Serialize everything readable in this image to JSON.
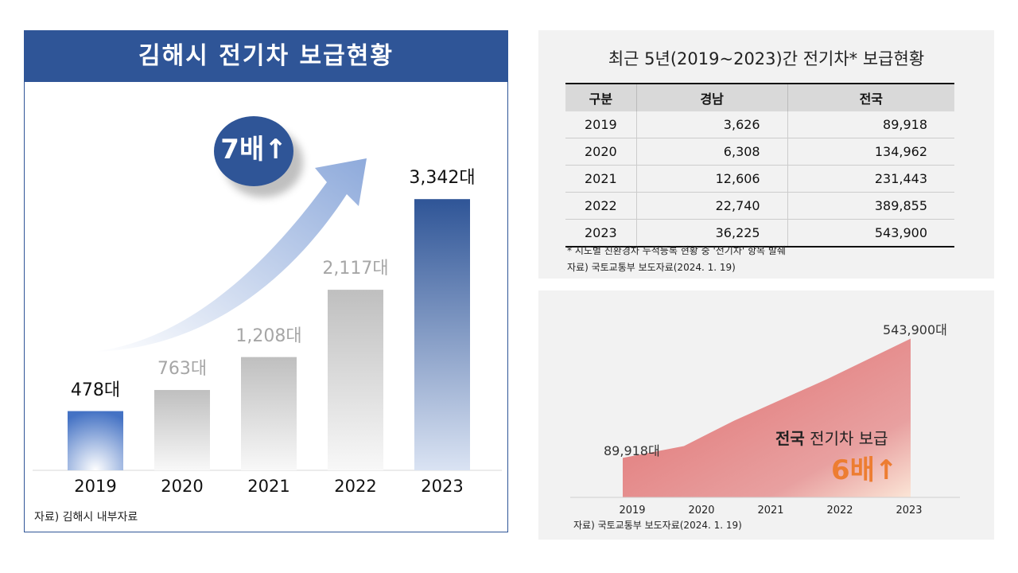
{
  "left": {
    "title": "김해시 전기차 보급현황",
    "badge": "7배↑",
    "source": "자료) 김해시 내부자료",
    "chart_data": {
      "type": "bar",
      "categories": [
        "2019",
        "2020",
        "2021",
        "2022",
        "2023"
      ],
      "values": [
        478,
        763,
        1208,
        2117,
        3342
      ],
      "labels": [
        "478대",
        "763대",
        "1,208대",
        "2,117대",
        "3,342대"
      ],
      "colors": {
        "highlight": "#2f5597",
        "other": "#bfbfbf"
      }
    }
  },
  "table": {
    "title": "최근 5년(2019~2023)간 전기차* 보급현황",
    "headers": [
      "구분",
      "경남",
      "전국"
    ],
    "rows": [
      [
        "2019",
        "3,626",
        "89,918"
      ],
      [
        "2020",
        "6,308",
        "134,962"
      ],
      [
        "2021",
        "12,606",
        "231,443"
      ],
      [
        "2022",
        "22,740",
        "389,855"
      ],
      [
        "2023",
        "36,225",
        "543,900"
      ]
    ],
    "note": "* 시도별 친환경차 누적등록 현황 중 '전기차' 항목 발췌",
    "source": "자료) 국토교통부 보도자료(2024. 1. 19)"
  },
  "area": {
    "chart_data": {
      "type": "area",
      "categories": [
        "2019",
        "2020",
        "2021",
        "2022",
        "2023"
      ],
      "values": [
        89918,
        134962,
        231443,
        389855,
        543900
      ],
      "start_label": "89,918대",
      "end_label": "543,900대",
      "color": "#e07070"
    },
    "caption_bold": "전국",
    "caption": "전기차 보급",
    "multiplier": "6배↑",
    "source": "자료) 국토교통부 보도자료(2024. 1. 19)"
  }
}
